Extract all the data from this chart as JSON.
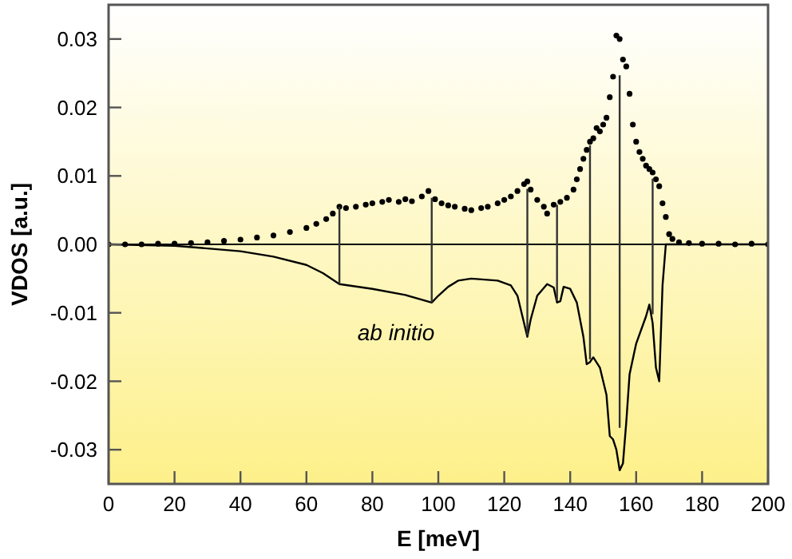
{
  "chart_data": {
    "type": "scatter",
    "xlabel": "E [meV]",
    "ylabel": "VDOS [a.u.]",
    "xlim": [
      0,
      200
    ],
    "xticks": [
      0,
      20,
      40,
      60,
      80,
      100,
      120,
      140,
      160,
      180,
      200
    ],
    "ylim": [
      -0.035,
      0.035
    ],
    "yticks": [
      -0.03,
      -0.02,
      -0.01,
      {
        "value": 0,
        "label": "0.00"
      },
      0.01,
      0.02,
      0.03
    ],
    "grid": false,
    "ref_lines": [
      {
        "axis": "y",
        "value": 0,
        "color": "#000000"
      }
    ],
    "annotations": [
      "ab initio"
    ],
    "series": [
      {
        "color": "#000000",
        "marker": "circle",
        "x": [
          0,
          5,
          10,
          15,
          20,
          25,
          30,
          35,
          40,
          45,
          50,
          55,
          60,
          63,
          66,
          68,
          70,
          72,
          75,
          78,
          80,
          83,
          85,
          88,
          90,
          92,
          95,
          97,
          99,
          101,
          103,
          105,
          108,
          110,
          113,
          115,
          118,
          120,
          122,
          124,
          126,
          127,
          128,
          130,
          132,
          133,
          135,
          137,
          139,
          141,
          142,
          143,
          144,
          145,
          146,
          147,
          148,
          149,
          150,
          151,
          152,
          153,
          154,
          155,
          156,
          157,
          158,
          159,
          160,
          161,
          162,
          163,
          164,
          165,
          166,
          167,
          168,
          169,
          170,
          171,
          173,
          176,
          180,
          185,
          190,
          195,
          200
        ],
        "values": [
          0,
          0,
          0,
          0.0001,
          0.0001,
          0.0002,
          0.0003,
          0.0005,
          0.0007,
          0.001,
          0.0013,
          0.0018,
          0.0024,
          0.003,
          0.0037,
          0.0045,
          0.0055,
          0.0053,
          0.0055,
          0.0058,
          0.006,
          0.0062,
          0.0065,
          0.0062,
          0.0066,
          0.0063,
          0.007,
          0.0078,
          0.0066,
          0.006,
          0.0057,
          0.0055,
          0.0052,
          0.005,
          0.0053,
          0.0055,
          0.006,
          0.0065,
          0.007,
          0.0078,
          0.0088,
          0.0092,
          0.008,
          0.0065,
          0.0055,
          0.0045,
          0.0058,
          0.0062,
          0.0068,
          0.008,
          0.0095,
          0.011,
          0.0125,
          0.0138,
          0.015,
          0.0155,
          0.017,
          0.0165,
          0.0175,
          0.0185,
          0.0215,
          0.0245,
          0.0305,
          0.03,
          0.027,
          0.026,
          0.022,
          0.0175,
          0.015,
          0.0135,
          0.0125,
          0.0115,
          0.011,
          0.0105,
          0.0095,
          0.0085,
          0.006,
          0.004,
          0.0015,
          0.0008,
          0.0003,
          0.0002,
          0.0001,
          0.0001,
          0,
          0.0001,
          0
        ]
      },
      {
        "type": "line",
        "color": "#000000",
        "x": [
          0,
          20,
          40,
          50,
          60,
          65,
          70,
          80,
          90,
          98,
          100,
          103,
          106,
          110,
          118,
          122,
          124,
          125.5,
          127,
          128,
          130,
          133,
          135,
          136,
          137,
          138,
          140,
          142,
          144,
          145,
          146,
          147,
          149,
          151,
          152,
          153,
          154,
          155,
          156,
          157,
          158,
          160,
          163,
          164,
          165,
          166,
          167,
          168,
          169,
          200
        ],
        "values": [
          0,
          -0.0002,
          -0.001,
          -0.0018,
          -0.003,
          -0.0042,
          -0.0058,
          -0.0065,
          -0.0074,
          -0.0085,
          -0.0075,
          -0.0062,
          -0.0053,
          -0.005,
          -0.0053,
          -0.006,
          -0.0075,
          -0.0105,
          -0.0135,
          -0.011,
          -0.0075,
          -0.0058,
          -0.0063,
          -0.0085,
          -0.0083,
          -0.0062,
          -0.0065,
          -0.0085,
          -0.0135,
          -0.0175,
          -0.0172,
          -0.0165,
          -0.018,
          -0.022,
          -0.028,
          -0.0285,
          -0.03,
          -0.033,
          -0.032,
          -0.026,
          -0.019,
          -0.0145,
          -0.0105,
          -0.0088,
          -0.0115,
          -0.018,
          -0.02,
          -0.006,
          0,
          0
        ]
      },
      {
        "type": "line",
        "color": "#333333",
        "x": [
          70,
          70
        ],
        "values": [
          0.0055,
          -0.0058
        ]
      },
      {
        "type": "line",
        "color": "#333333",
        "x": [
          98,
          98
        ],
        "values": [
          0.0068,
          -0.0085
        ]
      },
      {
        "type": "line",
        "color": "#333333",
        "x": [
          127,
          127
        ],
        "values": [
          0.0081,
          -0.0133
        ]
      },
      {
        "type": "line",
        "color": "#333333",
        "x": [
          136,
          136
        ],
        "values": [
          0.0058,
          -0.0083
        ]
      },
      {
        "type": "line",
        "color": "#333333",
        "x": [
          146,
          146
        ],
        "values": [
          0.0145,
          -0.0168
        ]
      },
      {
        "type": "line",
        "color": "#333333",
        "x": [
          155,
          155
        ],
        "values": [
          0.0247,
          -0.0268
        ]
      },
      {
        "type": "line",
        "color": "#333333",
        "x": [
          165,
          165
        ],
        "values": [
          0.0096,
          -0.0102
        ]
      }
    ]
  }
}
